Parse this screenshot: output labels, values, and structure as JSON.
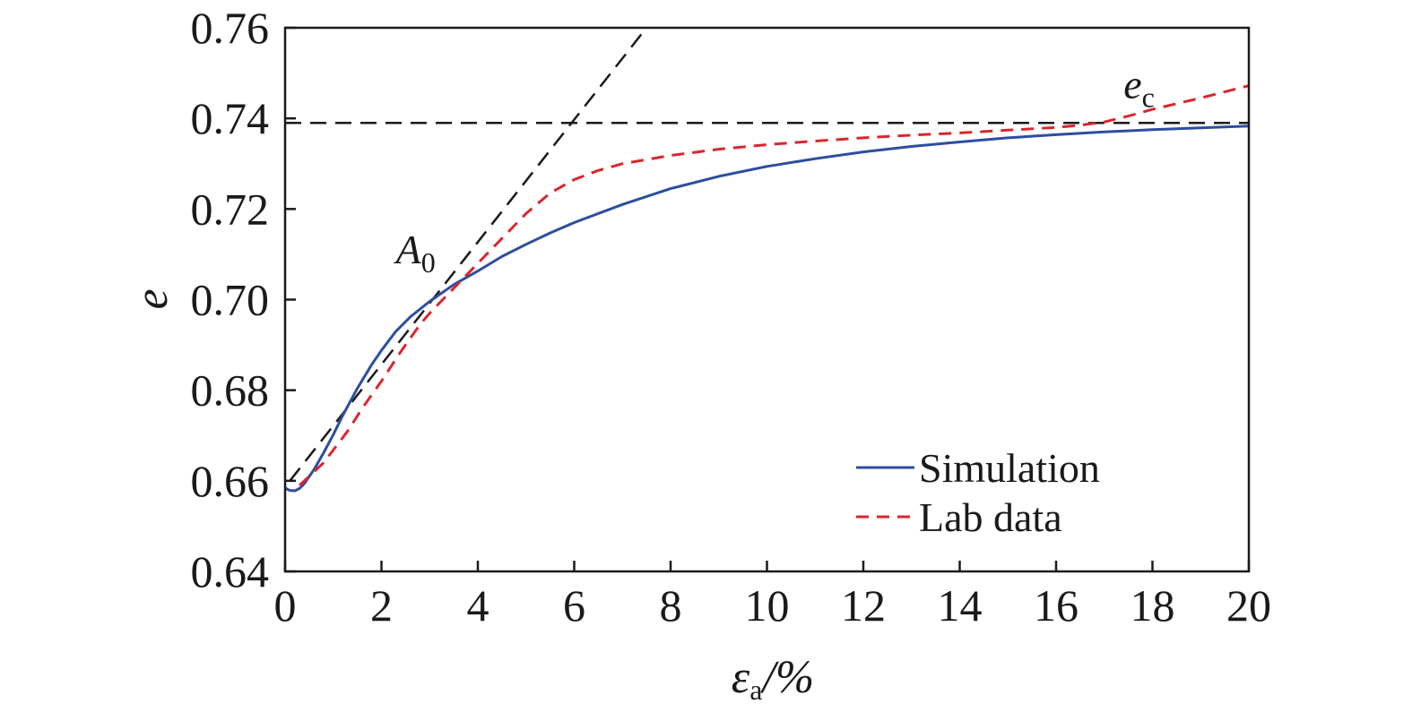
{
  "chart_data": {
    "type": "line",
    "xlabel": {
      "main": "ε",
      "sub": "a",
      "suffix": "/%"
    },
    "ylabel": "e",
    "xlim": [
      0,
      20
    ],
    "ylim": [
      0.64,
      0.76
    ],
    "xticks": [
      0,
      2,
      4,
      6,
      8,
      10,
      12,
      14,
      16,
      18,
      20
    ],
    "yticks": [
      0.64,
      0.66,
      0.68,
      0.7,
      0.72,
      0.74,
      0.76
    ],
    "ytick_labels": [
      "0.64",
      "0.66",
      "0.68",
      "0.70",
      "0.72",
      "0.74",
      "0.76"
    ],
    "grid": false,
    "legend_position": "bottom-right",
    "series": [
      {
        "name": "Simulation",
        "color": "#2c4ea0",
        "style": "solid",
        "x": [
          0,
          0.05,
          0.1,
          0.2,
          0.3,
          0.4,
          0.6,
          0.8,
          1.0,
          1.2,
          1.5,
          1.8,
          2.0,
          2.3,
          2.6,
          3.0,
          3.5,
          4.0,
          4.5,
          5.0,
          5.5,
          6.0,
          7.0,
          8.0,
          9.0,
          10.0,
          11.0,
          12.0,
          13.0,
          14.0,
          15.0,
          16.0,
          17.0,
          18.0,
          19.0,
          20.0
        ],
        "y": [
          0.6585,
          0.6581,
          0.6579,
          0.6578,
          0.6583,
          0.6594,
          0.6625,
          0.6662,
          0.6702,
          0.6745,
          0.6804,
          0.6857,
          0.6888,
          0.693,
          0.6962,
          0.6996,
          0.7033,
          0.7063,
          0.7095,
          0.7122,
          0.7147,
          0.717,
          0.721,
          0.7245,
          0.7272,
          0.7294,
          0.7311,
          0.7326,
          0.7338,
          0.7348,
          0.7357,
          0.7364,
          0.737,
          0.7375,
          0.7379,
          0.7383
        ]
      },
      {
        "name": "Lab data",
        "color": "#d9262d",
        "style": "dashed",
        "x": [
          0.3,
          0.5,
          0.8,
          1.0,
          1.3,
          1.6,
          2.0,
          2.4,
          2.8,
          3.0,
          3.2,
          3.5,
          4.0,
          4.5,
          5.0,
          5.5,
          6.0,
          6.5,
          7.0,
          8.0,
          9.0,
          10.0,
          11.0,
          12.0,
          13.0,
          14.0,
          15.0,
          16.0,
          16.5,
          17.0,
          17.5,
          18.0,
          19.0,
          20.0
        ],
        "y": [
          0.659,
          0.661,
          0.664,
          0.6668,
          0.671,
          0.676,
          0.682,
          0.6885,
          0.6945,
          0.697,
          0.6992,
          0.7025,
          0.708,
          0.7135,
          0.719,
          0.7235,
          0.7265,
          0.7285,
          0.73,
          0.7318,
          0.7332,
          0.7342,
          0.735,
          0.7357,
          0.7363,
          0.7368,
          0.7374,
          0.738,
          0.7385,
          0.7392,
          0.7405,
          0.742,
          0.7445,
          0.7472
        ]
      }
    ],
    "reference_lines": [
      {
        "kind": "tangent",
        "color": "#1a1a1a",
        "style": "dashed",
        "x": [
          0.1,
          7.5
        ],
        "y": [
          0.66,
          0.76
        ]
      },
      {
        "kind": "horizontal",
        "color": "#1a1a1a",
        "style": "dashed",
        "y": 0.739,
        "x": [
          0,
          20
        ]
      }
    ],
    "annotations": [
      {
        "text": "A",
        "sub": "0",
        "x": 2.3,
        "y": 0.708
      },
      {
        "text": "e",
        "sub": "c",
        "x": 17.4,
        "y": 0.7445
      }
    ]
  }
}
